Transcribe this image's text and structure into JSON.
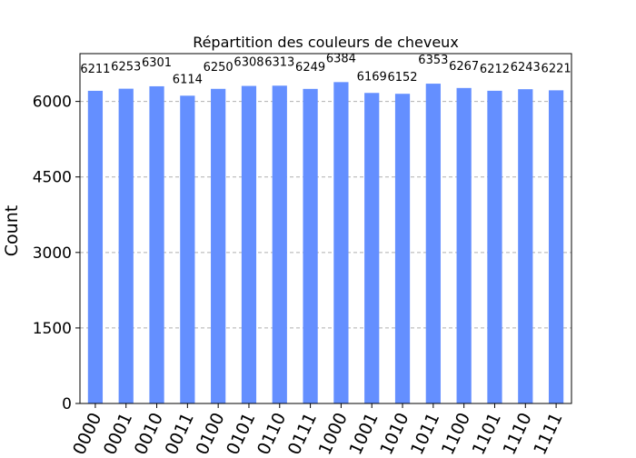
{
  "chart_data": {
    "type": "bar",
    "title": "Répartition des couleurs de cheveux",
    "xlabel": "",
    "ylabel": "Count",
    "ylim": [
      0,
      6950
    ],
    "yticks": [
      0,
      1500,
      3000,
      4500,
      6000
    ],
    "ytick_labels": [
      "0",
      "1500",
      "3000",
      "4500",
      "6000"
    ],
    "grid": "horizontal-dashed",
    "bar_color": "#648fff",
    "categories": [
      "0000",
      "0001",
      "0010",
      "0011",
      "0100",
      "0101",
      "0110",
      "0111",
      "1000",
      "1001",
      "1010",
      "1011",
      "1100",
      "1101",
      "1110",
      "1111"
    ],
    "values": [
      6211,
      6253,
      6301,
      6114,
      6250,
      6308,
      6313,
      6249,
      6384,
      6169,
      6152,
      6353,
      6267,
      6212,
      6243,
      6221
    ],
    "data_labels": [
      "6211",
      "6253",
      "6301",
      "6114",
      "6250",
      "6308",
      "6313",
      "6249",
      "6384",
      "6169",
      "6152",
      "6353",
      "6267",
      "6212",
      "6243",
      "6221"
    ]
  }
}
